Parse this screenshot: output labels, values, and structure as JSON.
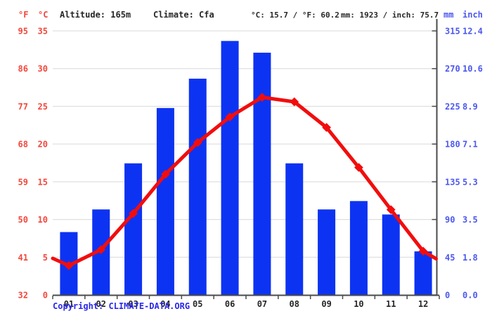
{
  "header": {
    "fahrenheit_label": "°F",
    "celsius_label": "°C",
    "altitude": "Altitude: 165m",
    "climate": "Climate: Cfa",
    "temp_summary": "°C: 15.7 / °F: 60.2",
    "precip_summary": "mm: 1923 / inch: 75.7",
    "mm_label": "mm",
    "inch_label": "inch"
  },
  "axes": {
    "fahrenheit_ticks": [
      "95",
      "86",
      "77",
      "68",
      "59",
      "50",
      "41",
      "32"
    ],
    "celsius_ticks": [
      "35",
      "30",
      "25",
      "20",
      "15",
      "10",
      "5",
      "0"
    ],
    "mm_ticks": [
      "315",
      "270",
      "225",
      "180",
      "135",
      "90",
      "45",
      "0"
    ],
    "inch_ticks": [
      "12.4",
      "10.6",
      "8.9",
      "7.1",
      "5.3",
      "3.5",
      "1.8",
      "0.0"
    ]
  },
  "chart_data": {
    "type": "bar+line",
    "categories": [
      "01",
      "02",
      "03",
      "04",
      "05",
      "06",
      "07",
      "08",
      "09",
      "10",
      "11",
      "12"
    ],
    "series": [
      {
        "name": "precipitation",
        "type": "bar",
        "unit": "mm",
        "values": [
          75,
          102,
          157,
          223,
          258,
          303,
          289,
          157,
          102,
          112,
          96,
          52
        ]
      },
      {
        "name": "temperature",
        "type": "line",
        "unit": "°C",
        "values": [
          3.9,
          6.0,
          10.8,
          16.0,
          20.2,
          23.6,
          26.2,
          25.6,
          22.2,
          16.9,
          11.3,
          5.8
        ]
      }
    ],
    "edge_extension": {
      "left_c": 4.85,
      "right_c": 4.8
    },
    "ylim_mm": [
      0,
      315
    ],
    "ylim_c": [
      0,
      35
    ],
    "grid": true,
    "legend_position": "none"
  },
  "footer": {
    "copyright": "Copyright: CLIMATE-DATA.ORG"
  },
  "colors": {
    "bar": "#0d33f2",
    "line": "#f20d0d",
    "left_axis_text": "#f2473c",
    "right_axis_text": "#4c58ee",
    "header_text": "#262626",
    "month_text": "#262626",
    "gridline": "#d9d9d9",
    "axis": "#4a4a4a",
    "copyright": "#2929e8"
  }
}
